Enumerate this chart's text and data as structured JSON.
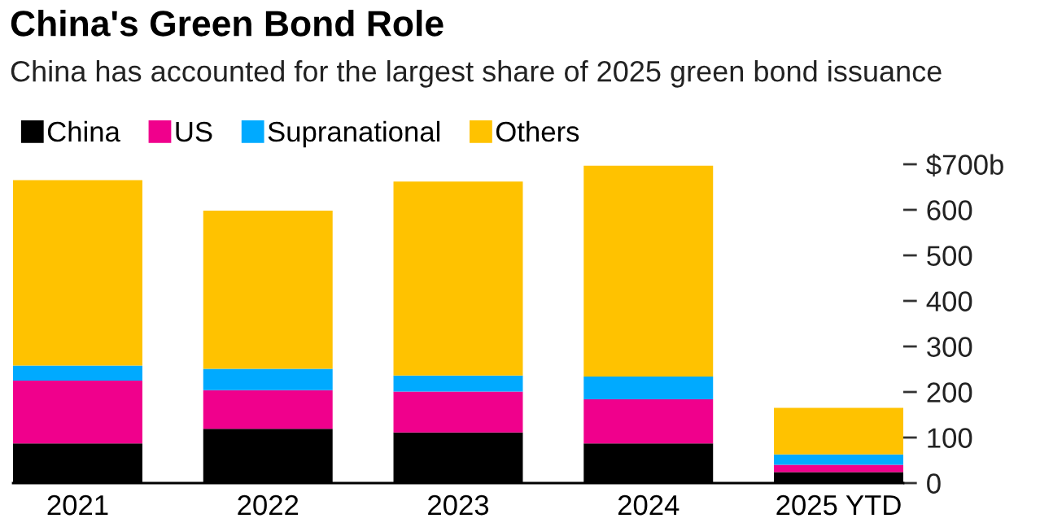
{
  "chart_data": {
    "type": "bar",
    "title": "China's Green Bond Role",
    "subtitle": "China has accounted for the largest share of 2025 green bond issuance",
    "categories": [
      "2021",
      "2022",
      "2023",
      "2024",
      "2025 YTD"
    ],
    "stacked": true,
    "series": [
      {
        "name": "China",
        "color": "#000000",
        "values": [
          87,
          119,
          111,
          87,
          24
        ]
      },
      {
        "name": "US",
        "color": "#f0008c",
        "values": [
          138,
          85,
          90,
          97,
          16
        ]
      },
      {
        "name": "Supranational",
        "color": "#00aaff",
        "values": [
          33,
          47,
          35,
          50,
          23
        ]
      },
      {
        "name": "Others",
        "color": "#ffc200",
        "values": [
          407,
          347,
          426,
          463,
          102
        ]
      }
    ],
    "ylim": [
      0,
      700
    ],
    "yticks": [
      0,
      100,
      200,
      300,
      400,
      500,
      600,
      {
        "value": 700,
        "label": "$700b"
      }
    ],
    "grid": false,
    "legend": "top left"
  }
}
